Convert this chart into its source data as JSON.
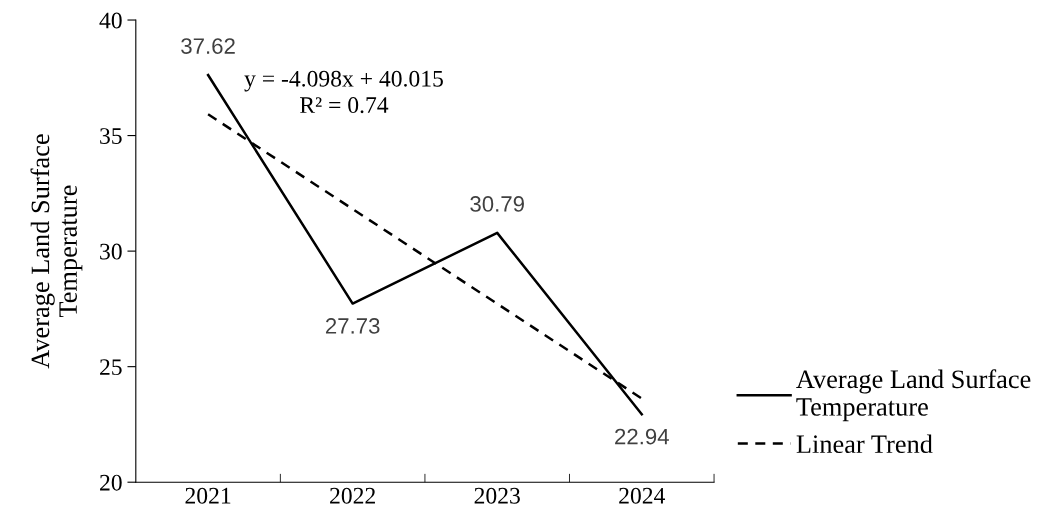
{
  "chart_data": {
    "type": "line",
    "ylabel": "Average Land Surface Temperature",
    "categories": [
      "2021",
      "2022",
      "2023",
      "2024"
    ],
    "series": [
      {
        "name": "Average Land Surface Temperature",
        "color": "#000000",
        "values": [
          37.62,
          27.73,
          30.79,
          22.94
        ],
        "value_labels": [
          "37.62",
          "27.73",
          "30.79",
          "22.94"
        ],
        "line_style": "solid"
      },
      {
        "name": "Linear Trend",
        "color": "#000000",
        "values": [
          35.92,
          31.82,
          27.72,
          23.62
        ],
        "line_style": "dashed"
      }
    ],
    "ylim": [
      20,
      40
    ],
    "yticks": [
      20,
      25,
      30,
      35,
      40
    ],
    "grid": false,
    "legend": "right",
    "marker": "none",
    "annotations": [
      "y = -4.098x + 40.015",
      "R² = 0.74"
    ]
  }
}
